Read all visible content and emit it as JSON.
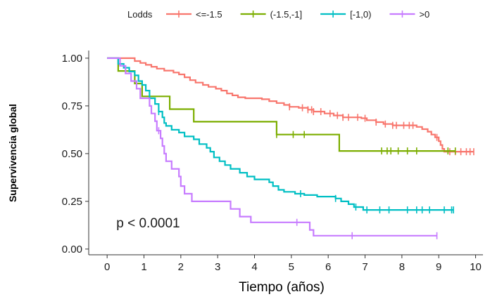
{
  "chart_data": {
    "type": "line",
    "xlabel": "Tiempo (años)",
    "ylabel": "Supervivencia global",
    "xlim": [
      -0.5,
      10.2
    ],
    "ylim": [
      -0.03,
      1.04
    ],
    "x_ticks": [
      "0",
      "1",
      "2",
      "3",
      "4",
      "5",
      "6",
      "7",
      "8",
      "9",
      "10"
    ],
    "y_ticks": [
      "0.00",
      "0.25",
      "0.50",
      "0.75",
      "1.00"
    ],
    "grid": false,
    "legend_title": "Lodds",
    "legend_position": "top",
    "annotation": "p < 0.0001",
    "annotation_pos": [
      0.25,
      0.14
    ],
    "series": [
      {
        "name": "<=-1.5",
        "color": "#F8766D",
        "points": [
          [
            0,
            1.0
          ],
          [
            0.6,
            1.0
          ],
          [
            0.75,
            0.985
          ],
          [
            0.9,
            0.975
          ],
          [
            1.05,
            0.965
          ],
          [
            1.2,
            0.955
          ],
          [
            1.35,
            0.945
          ],
          [
            1.55,
            0.935
          ],
          [
            1.8,
            0.925
          ],
          [
            1.95,
            0.915
          ],
          [
            2.1,
            0.9
          ],
          [
            2.25,
            0.885
          ],
          [
            2.4,
            0.872
          ],
          [
            2.6,
            0.86
          ],
          [
            2.75,
            0.85
          ],
          [
            2.95,
            0.84
          ],
          [
            3.1,
            0.83
          ],
          [
            3.25,
            0.815
          ],
          [
            3.4,
            0.805
          ],
          [
            3.55,
            0.795
          ],
          [
            3.75,
            0.79
          ],
          [
            4.2,
            0.785
          ],
          [
            4.4,
            0.775
          ],
          [
            4.6,
            0.765
          ],
          [
            4.8,
            0.755
          ],
          [
            4.95,
            0.745
          ],
          [
            5.2,
            0.74
          ],
          [
            5.45,
            0.73
          ],
          [
            5.6,
            0.72
          ],
          [
            5.9,
            0.71
          ],
          [
            6.15,
            0.7
          ],
          [
            6.4,
            0.69
          ],
          [
            6.9,
            0.685
          ],
          [
            7.05,
            0.675
          ],
          [
            7.3,
            0.665
          ],
          [
            7.5,
            0.655
          ],
          [
            7.75,
            0.648
          ],
          [
            8.4,
            0.64
          ],
          [
            8.55,
            0.628
          ],
          [
            8.7,
            0.615
          ],
          [
            8.8,
            0.6
          ],
          [
            8.9,
            0.585
          ],
          [
            9.0,
            0.565
          ],
          [
            9.05,
            0.545
          ],
          [
            9.1,
            0.525
          ],
          [
            9.15,
            0.51
          ],
          [
            9.95,
            0.51
          ]
        ],
        "censored_x": [
          4.95,
          5.3,
          5.45,
          5.55,
          5.6,
          5.8,
          6.05,
          6.25,
          6.4,
          6.55,
          6.8,
          7.0,
          7.3,
          7.55,
          7.75,
          7.85,
          8.05,
          8.2,
          8.3,
          8.95,
          9.3,
          9.45,
          9.6,
          9.75,
          9.85,
          9.95
        ]
      },
      {
        "name": "(-1.5,-1]",
        "color": "#7CAE00",
        "points": [
          [
            0,
            1.0
          ],
          [
            0.3,
            1.0
          ],
          [
            0.3,
            0.933
          ],
          [
            0.75,
            0.933
          ],
          [
            0.75,
            0.867
          ],
          [
            0.95,
            0.867
          ],
          [
            0.95,
            0.8
          ],
          [
            1.7,
            0.8
          ],
          [
            1.7,
            0.733
          ],
          [
            2.35,
            0.733
          ],
          [
            2.35,
            0.667
          ],
          [
            4.6,
            0.667
          ],
          [
            4.6,
            0.6
          ],
          [
            6.3,
            0.6
          ],
          [
            6.3,
            0.514
          ],
          [
            9.45,
            0.514
          ]
        ],
        "censored_x": [
          4.6,
          5.05,
          5.35,
          7.45,
          7.6,
          7.7,
          7.9,
          8.15,
          8.4,
          9.25,
          9.45
        ]
      },
      {
        "name": "[-1,0)",
        "color": "#00BFC4",
        "points": [
          [
            0,
            1.0
          ],
          [
            0.3,
            1.0
          ],
          [
            0.3,
            0.97
          ],
          [
            0.45,
            0.95
          ],
          [
            0.6,
            0.93
          ],
          [
            0.75,
            0.91
          ],
          [
            0.85,
            0.88
          ],
          [
            0.95,
            0.86
          ],
          [
            1.05,
            0.83
          ],
          [
            1.15,
            0.79
          ],
          [
            1.3,
            0.76
          ],
          [
            1.4,
            0.72
          ],
          [
            1.5,
            0.69
          ],
          [
            1.55,
            0.66
          ],
          [
            1.6,
            0.645
          ],
          [
            1.75,
            0.625
          ],
          [
            1.95,
            0.61
          ],
          [
            2.1,
            0.59
          ],
          [
            2.35,
            0.575
          ],
          [
            2.5,
            0.55
          ],
          [
            2.7,
            0.53
          ],
          [
            2.8,
            0.51
          ],
          [
            2.9,
            0.48
          ],
          [
            3.05,
            0.46
          ],
          [
            3.2,
            0.44
          ],
          [
            3.35,
            0.42
          ],
          [
            3.6,
            0.4
          ],
          [
            3.8,
            0.38
          ],
          [
            4.0,
            0.365
          ],
          [
            4.4,
            0.35
          ],
          [
            4.5,
            0.33
          ],
          [
            4.65,
            0.31
          ],
          [
            4.8,
            0.3
          ],
          [
            5.1,
            0.29
          ],
          [
            5.35,
            0.283
          ],
          [
            5.7,
            0.275
          ],
          [
            6.2,
            0.265
          ],
          [
            6.35,
            0.25
          ],
          [
            6.55,
            0.235
          ],
          [
            6.7,
            0.22
          ],
          [
            6.95,
            0.205
          ],
          [
            9.4,
            0.205
          ]
        ],
        "censored_x": [
          1.4,
          5.25,
          6.2,
          6.75,
          7.05,
          7.4,
          7.65,
          8.15,
          8.4,
          8.55,
          8.75,
          9.15,
          9.35,
          9.4
        ]
      },
      {
        "name": ">0",
        "color": "#C77CFF",
        "points": [
          [
            0,
            1.0
          ],
          [
            0.35,
            1.0
          ],
          [
            0.35,
            0.96
          ],
          [
            0.5,
            0.96
          ],
          [
            0.5,
            0.92
          ],
          [
            0.65,
            0.92
          ],
          [
            0.65,
            0.88
          ],
          [
            0.8,
            0.88
          ],
          [
            0.8,
            0.84
          ],
          [
            0.9,
            0.84
          ],
          [
            0.9,
            0.79
          ],
          [
            1.15,
            0.79
          ],
          [
            1.15,
            0.75
          ],
          [
            1.2,
            0.75
          ],
          [
            1.2,
            0.71
          ],
          [
            1.3,
            0.71
          ],
          [
            1.3,
            0.67
          ],
          [
            1.35,
            0.67
          ],
          [
            1.35,
            0.62
          ],
          [
            1.45,
            0.62
          ],
          [
            1.45,
            0.58
          ],
          [
            1.5,
            0.58
          ],
          [
            1.5,
            0.54
          ],
          [
            1.55,
            0.54
          ],
          [
            1.55,
            0.5
          ],
          [
            1.6,
            0.5
          ],
          [
            1.6,
            0.46
          ],
          [
            1.75,
            0.46
          ],
          [
            1.75,
            0.42
          ],
          [
            1.95,
            0.42
          ],
          [
            1.95,
            0.38
          ],
          [
            2.0,
            0.38
          ],
          [
            2.0,
            0.33
          ],
          [
            2.1,
            0.33
          ],
          [
            2.1,
            0.29
          ],
          [
            2.3,
            0.29
          ],
          [
            2.3,
            0.25
          ],
          [
            3.35,
            0.25
          ],
          [
            3.35,
            0.21
          ],
          [
            3.6,
            0.21
          ],
          [
            3.6,
            0.17
          ],
          [
            3.9,
            0.17
          ],
          [
            3.9,
            0.14
          ],
          [
            5.5,
            0.14
          ],
          [
            5.5,
            0.1
          ],
          [
            5.6,
            0.1
          ],
          [
            5.6,
            0.07
          ],
          [
            8.95,
            0.07
          ]
        ],
        "censored_x": [
          1.4,
          5.15,
          6.65,
          8.95
        ]
      }
    ]
  }
}
